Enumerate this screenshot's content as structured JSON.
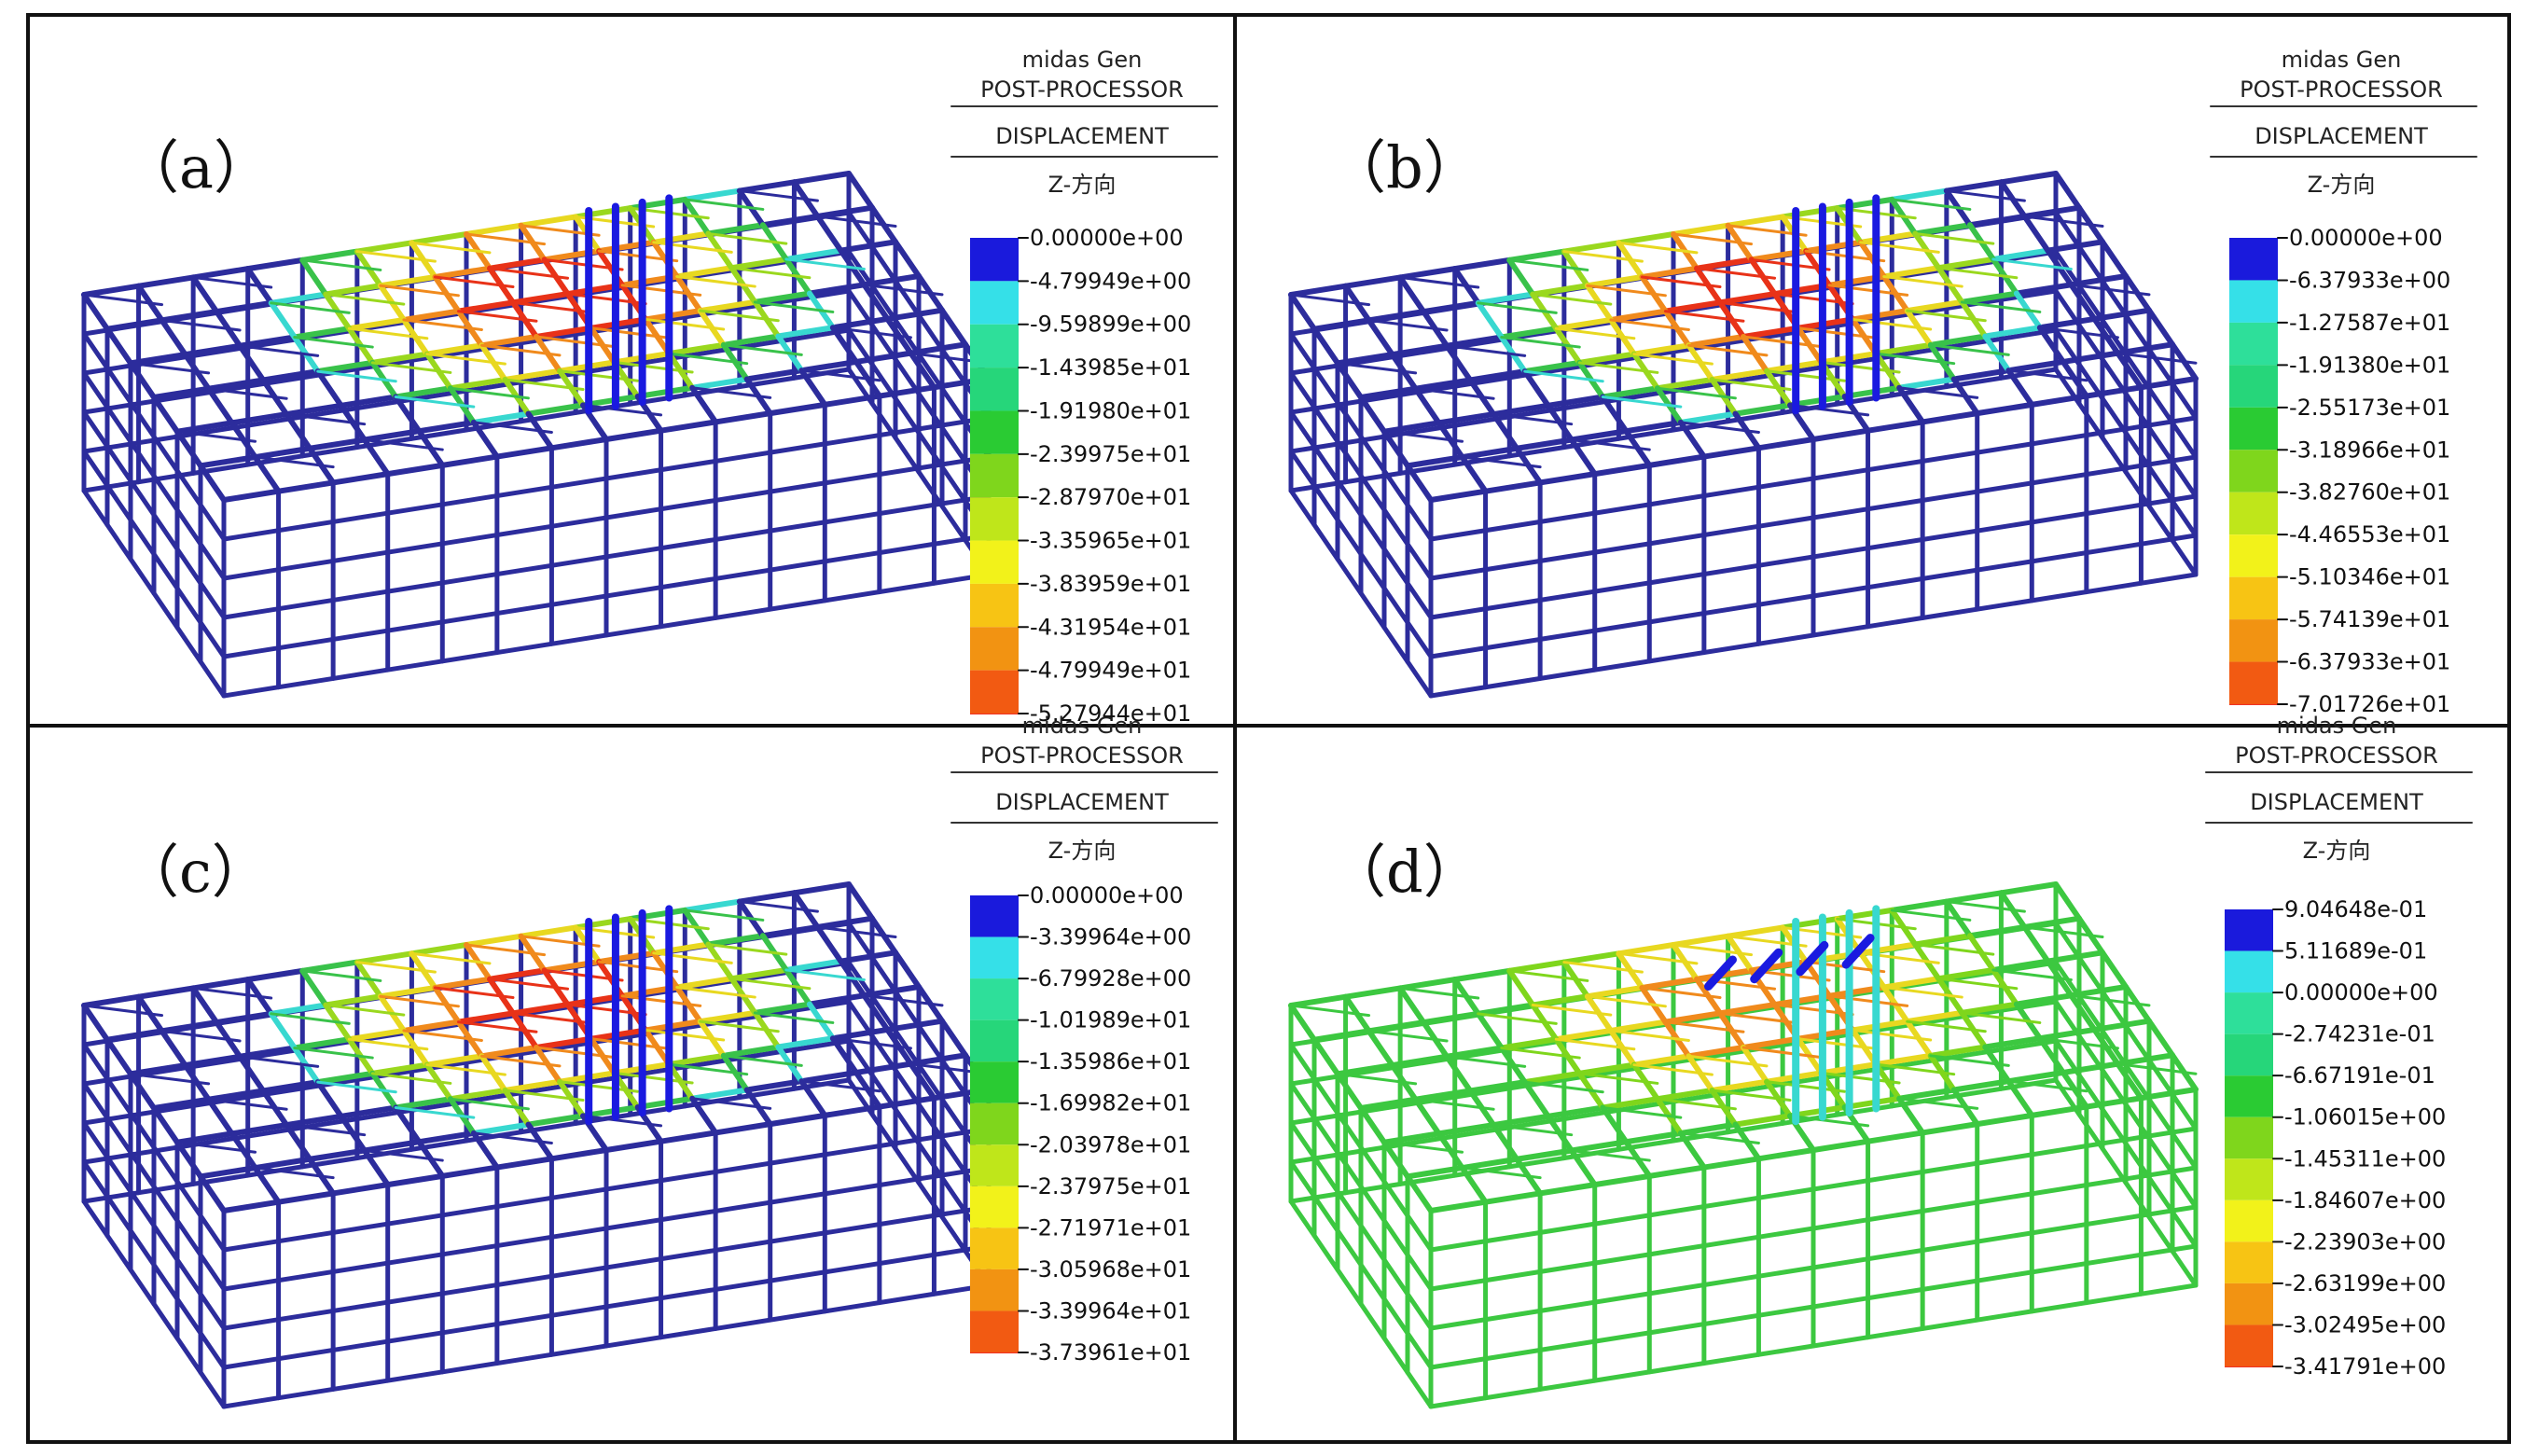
{
  "figure": {
    "panels": [
      {
        "label": "（a）",
        "software": "midas Gen",
        "module": "POST-PROCESSOR",
        "result": "DISPLACEMENT",
        "direction": "Z-方向",
        "scheme": "negative",
        "legend_values": [
          "0.00000e+00",
          "-4.79949e+00",
          "-9.59899e+00",
          "-1.43985e+01",
          "-1.91980e+01",
          "-2.39975e+01",
          "-2.87970e+01",
          "-3.35965e+01",
          "-3.83959e+01",
          "-4.31954e+01",
          "-4.79949e+01",
          "-5.27944e+01"
        ],
        "legend_colors": [
          "#1a1adc",
          "#35e0e8",
          "#2edf9a",
          "#26d67a",
          "#2acb33",
          "#7fd61c",
          "#bfe61a",
          "#f2f21a",
          "#f7c414",
          "#f29312",
          "#f25a12",
          "#ef2a1a"
        ]
      },
      {
        "label": "（b）",
        "software": "midas Gen",
        "module": "POST-PROCESSOR",
        "result": "DISPLACEMENT",
        "direction": "Z-方向",
        "scheme": "negative",
        "legend_values": [
          "0.00000e+00",
          "-6.37933e+00",
          "-1.27587e+01",
          "-1.91380e+01",
          "-2.55173e+01",
          "-3.18966e+01",
          "-3.82760e+01",
          "-4.46553e+01",
          "-5.10346e+01",
          "-5.74139e+01",
          "-6.37933e+01",
          "-7.01726e+01"
        ],
        "legend_colors": [
          "#1a1adc",
          "#35e0e8",
          "#2edf9a",
          "#26d67a",
          "#2acb33",
          "#7fd61c",
          "#bfe61a",
          "#f2f21a",
          "#f7c414",
          "#f29312",
          "#f25a12",
          "#ef2a1a"
        ]
      },
      {
        "label": "（c）",
        "software": "midas Gen",
        "module": "POST-PROCESSOR",
        "result": "DISPLACEMENT",
        "direction": "Z-方向",
        "scheme": "negative",
        "legend_values": [
          "0.00000e+00",
          "-3.39964e+00",
          "-6.79928e+00",
          "-1.01989e+01",
          "-1.35986e+01",
          "-1.69982e+01",
          "-2.03978e+01",
          "-2.37975e+01",
          "-2.71971e+01",
          "-3.05968e+01",
          "-3.39964e+01",
          "-3.73961e+01"
        ],
        "legend_colors": [
          "#1a1adc",
          "#35e0e8",
          "#2edf9a",
          "#26d67a",
          "#2acb33",
          "#7fd61c",
          "#bfe61a",
          "#f2f21a",
          "#f7c414",
          "#f29312",
          "#f25a12",
          "#ef2a1a"
        ]
      },
      {
        "label": "（d）",
        "software": "midas Gen",
        "module": "POST-PROCESSOR",
        "result": "DISPLACEMENT",
        "direction": "Z-方向",
        "scheme": "mixed",
        "legend_values": [
          "9.04648e-01",
          "5.11689e-01",
          "0.00000e+00",
          "-2.74231e-01",
          "-6.67191e-01",
          "-1.06015e+00",
          "-1.45311e+00",
          "-1.84607e+00",
          "-2.23903e+00",
          "-2.63199e+00",
          "-3.02495e+00",
          "-3.41791e+00"
        ],
        "legend_colors": [
          "#1a1adc",
          "#35e0e8",
          "#2edf9a",
          "#26d67a",
          "#2acb33",
          "#7fd61c",
          "#bfe61a",
          "#f2f21a",
          "#f7c414",
          "#f29312",
          "#f25a12",
          "#ef2a1a"
        ]
      }
    ],
    "colors": {
      "frame_line": "#111111",
      "structure_base": "#2c2c9c",
      "structure_base_d": "#3cc840",
      "mid_green": "#39c24a",
      "cyan": "#38d8d0",
      "yellow": "#e8d820",
      "orange": "#f08a1c",
      "red": "#e83218",
      "blue_band": "#1a1ae0"
    }
  }
}
